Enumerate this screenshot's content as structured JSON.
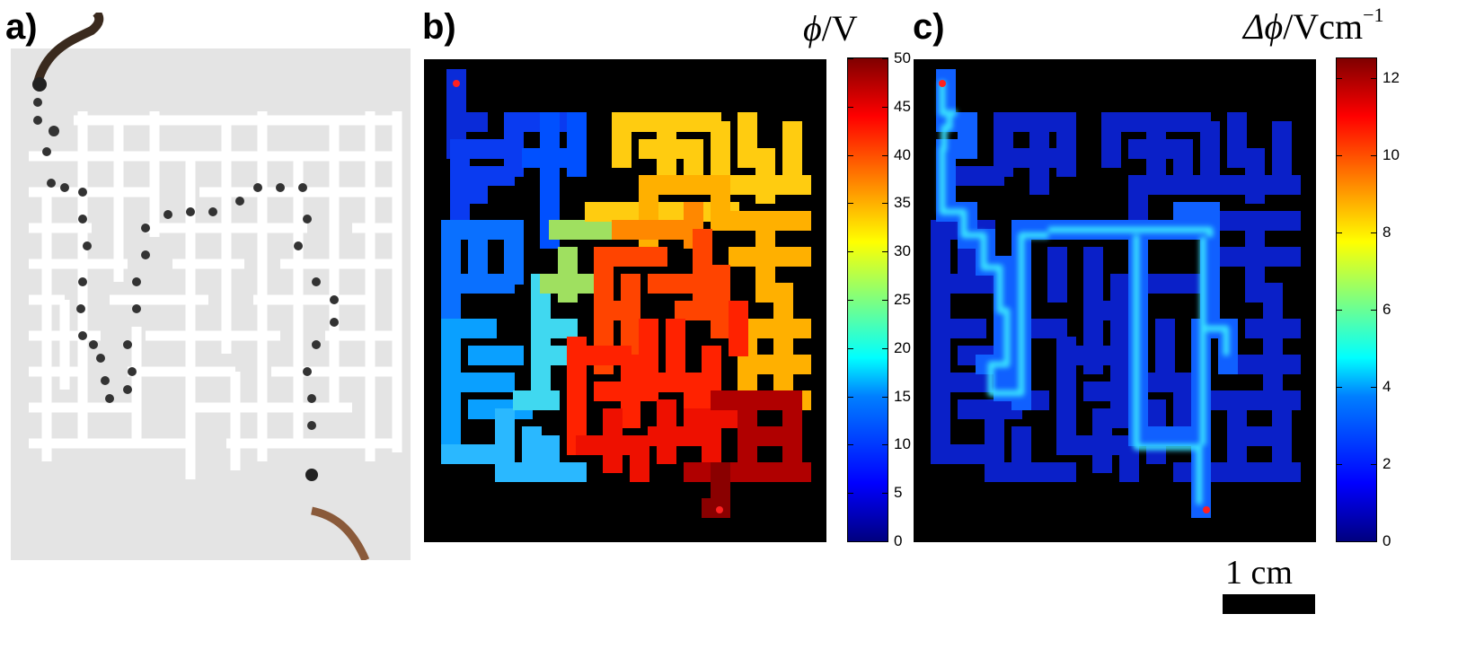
{
  "panels": {
    "a": {
      "label": "a)"
    },
    "b": {
      "label": "b)",
      "colorbar_title": "ϕ",
      "colorbar_unit": "/V",
      "ticks": [
        "50",
        "45",
        "40",
        "35",
        "30",
        "25",
        "20",
        "15",
        "10",
        "5",
        "0"
      ]
    },
    "c": {
      "label": "c)",
      "colorbar_title": "Δϕ",
      "colorbar_unit": "/Vcm",
      "colorbar_exp": "−1",
      "ticks": [
        "12",
        "10",
        "8",
        "6",
        "4",
        "2",
        "0"
      ]
    }
  },
  "scale_bar": {
    "label": "1 cm"
  },
  "colors": {
    "maze_bg": "#000000",
    "photo_bg": "#e9e9e9",
    "marker": "#ff2020"
  }
}
